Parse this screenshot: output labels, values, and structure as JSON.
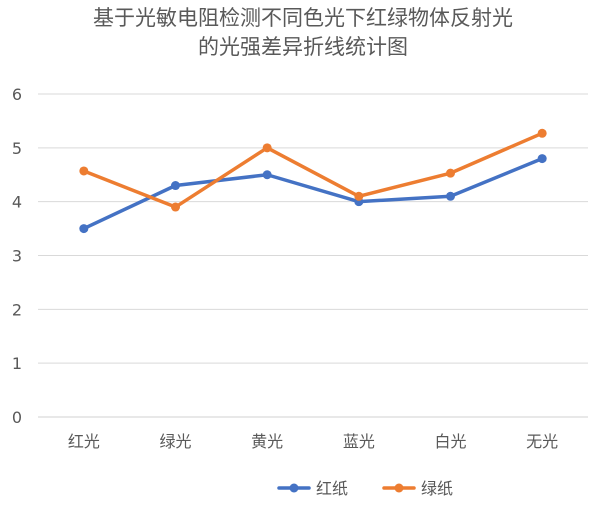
{
  "chart_data": {
    "type": "line",
    "title_lines": [
      "基于光敏电阻检测不同色光下红绿物体反射光",
      "的光强差异折线统计图"
    ],
    "categories": [
      "红光",
      "绿光",
      "黄光",
      "蓝光",
      "白光",
      "无光"
    ],
    "ylim": [
      0,
      6
    ],
    "yticks": [
      "0",
      "1",
      "2",
      "3",
      "4",
      "5",
      "6"
    ],
    "grid": true,
    "legend_position": "bottom",
    "series": [
      {
        "name": "红纸",
        "color": "#4472C4",
        "values": [
          3.5,
          4.3,
          4.5,
          4.0,
          4.1,
          4.8
        ]
      },
      {
        "name": "绿纸",
        "color": "#ED7D31",
        "values": [
          4.57,
          3.9,
          5.0,
          4.1,
          4.53,
          5.27
        ]
      }
    ]
  }
}
